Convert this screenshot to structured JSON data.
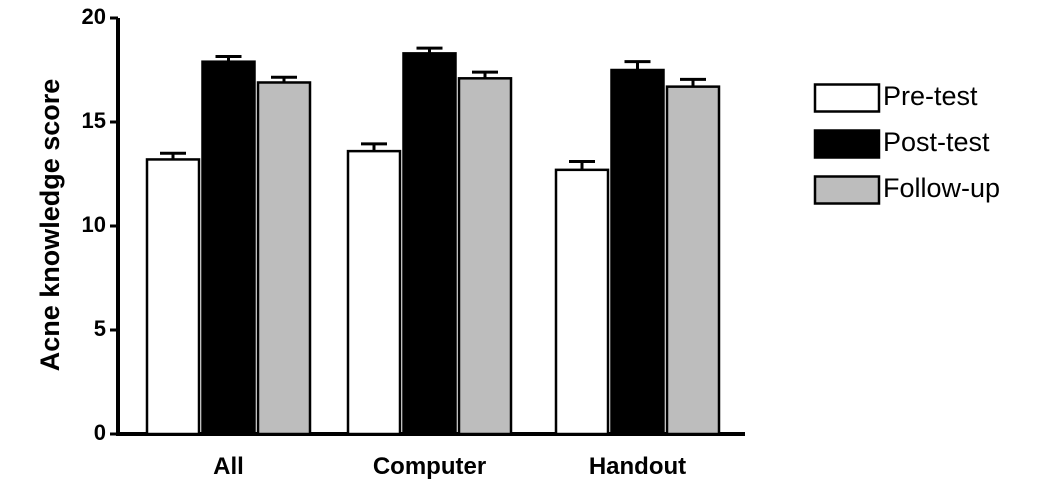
{
  "chart_data": {
    "type": "bar",
    "title": "",
    "xlabel": "",
    "ylabel": "Acne knowledge score",
    "ylim": [
      0,
      20
    ],
    "yticks": [
      0,
      5,
      10,
      15,
      20
    ],
    "grid": false,
    "legend_position": "right",
    "categories": [
      "All",
      "Computer",
      "Handout"
    ],
    "series": [
      {
        "name": "Pre-test",
        "color": "#ffffff",
        "values": [
          13.2,
          13.6,
          12.7
        ],
        "errors": [
          0.3,
          0.35,
          0.4
        ]
      },
      {
        "name": "Post-test",
        "color": "#000000",
        "values": [
          17.9,
          18.3,
          17.5
        ],
        "errors": [
          0.25,
          0.25,
          0.4
        ]
      },
      {
        "name": "Follow-up",
        "color": "#bdbdbd",
        "values": [
          16.9,
          17.1,
          16.7
        ],
        "errors": [
          0.25,
          0.3,
          0.35
        ]
      }
    ]
  }
}
